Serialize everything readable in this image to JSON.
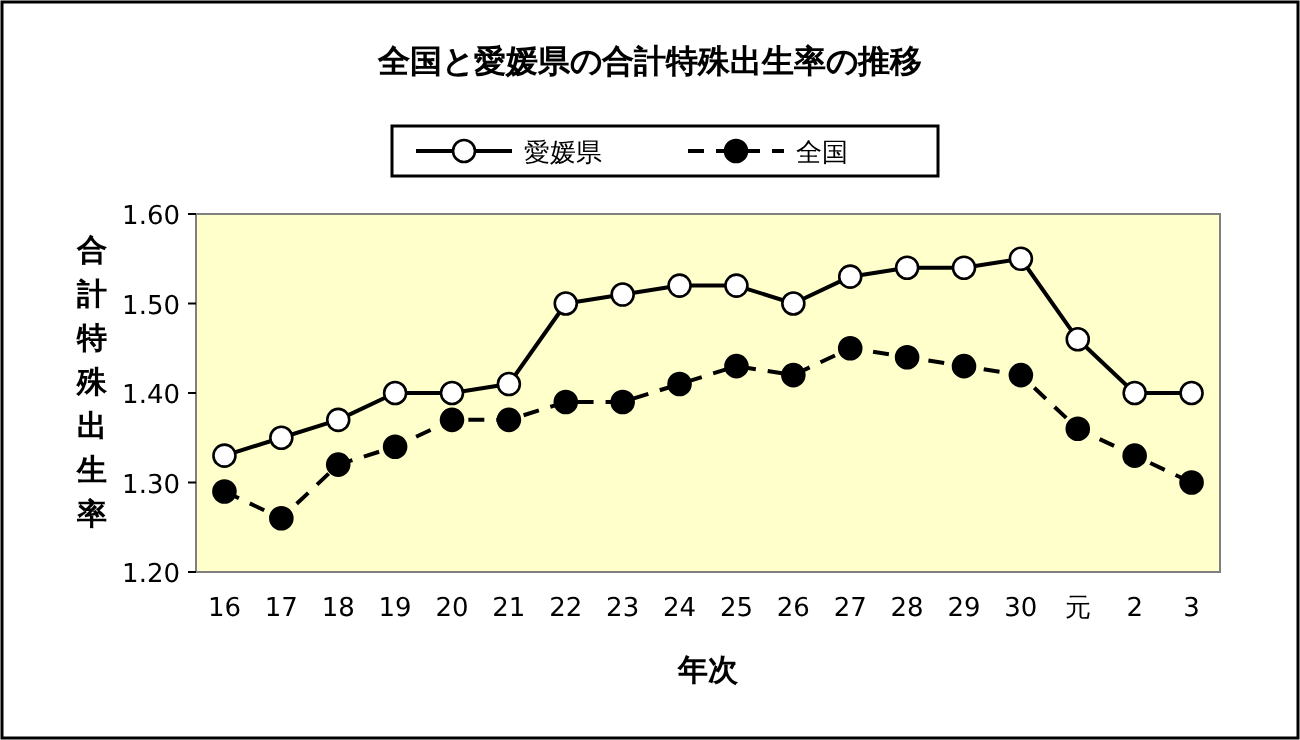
{
  "chart_data": {
    "type": "line",
    "title": "全国と愛媛県の合計特殊出生率の推移",
    "xlabel": "年次",
    "ylabel": "合計特殊出生率",
    "categories": [
      "16",
      "17",
      "18",
      "19",
      "20",
      "21",
      "22",
      "23",
      "24",
      "25",
      "26",
      "27",
      "28",
      "29",
      "30",
      "元",
      "2",
      "3"
    ],
    "series": [
      {
        "name": "愛媛県",
        "color": "#000000",
        "line_style": "solid",
        "values": [
          1.33,
          1.35,
          1.37,
          1.4,
          1.4,
          1.41,
          1.5,
          1.51,
          1.52,
          1.52,
          1.5,
          1.53,
          1.54,
          1.54,
          1.55,
          1.46,
          1.4,
          1.4
        ]
      },
      {
        "name": "全国",
        "color": "#000000",
        "line_style": "dashed",
        "values": [
          1.29,
          1.26,
          1.32,
          1.34,
          1.37,
          1.37,
          1.39,
          1.39,
          1.41,
          1.43,
          1.42,
          1.45,
          1.44,
          1.43,
          1.42,
          1.36,
          1.33,
          1.3
        ]
      }
    ],
    "ylim": [
      1.2,
      1.6
    ],
    "yticks": [
      {
        "value": 1.2,
        "label": "1.20"
      },
      {
        "value": 1.3,
        "label": "1.30"
      },
      {
        "value": 1.4,
        "label": "1.40"
      },
      {
        "value": 1.5,
        "label": "1.50"
      },
      {
        "value": 1.6,
        "label": "1.60"
      }
    ],
    "marker": "circle",
    "legend": "top",
    "grid": false
  }
}
